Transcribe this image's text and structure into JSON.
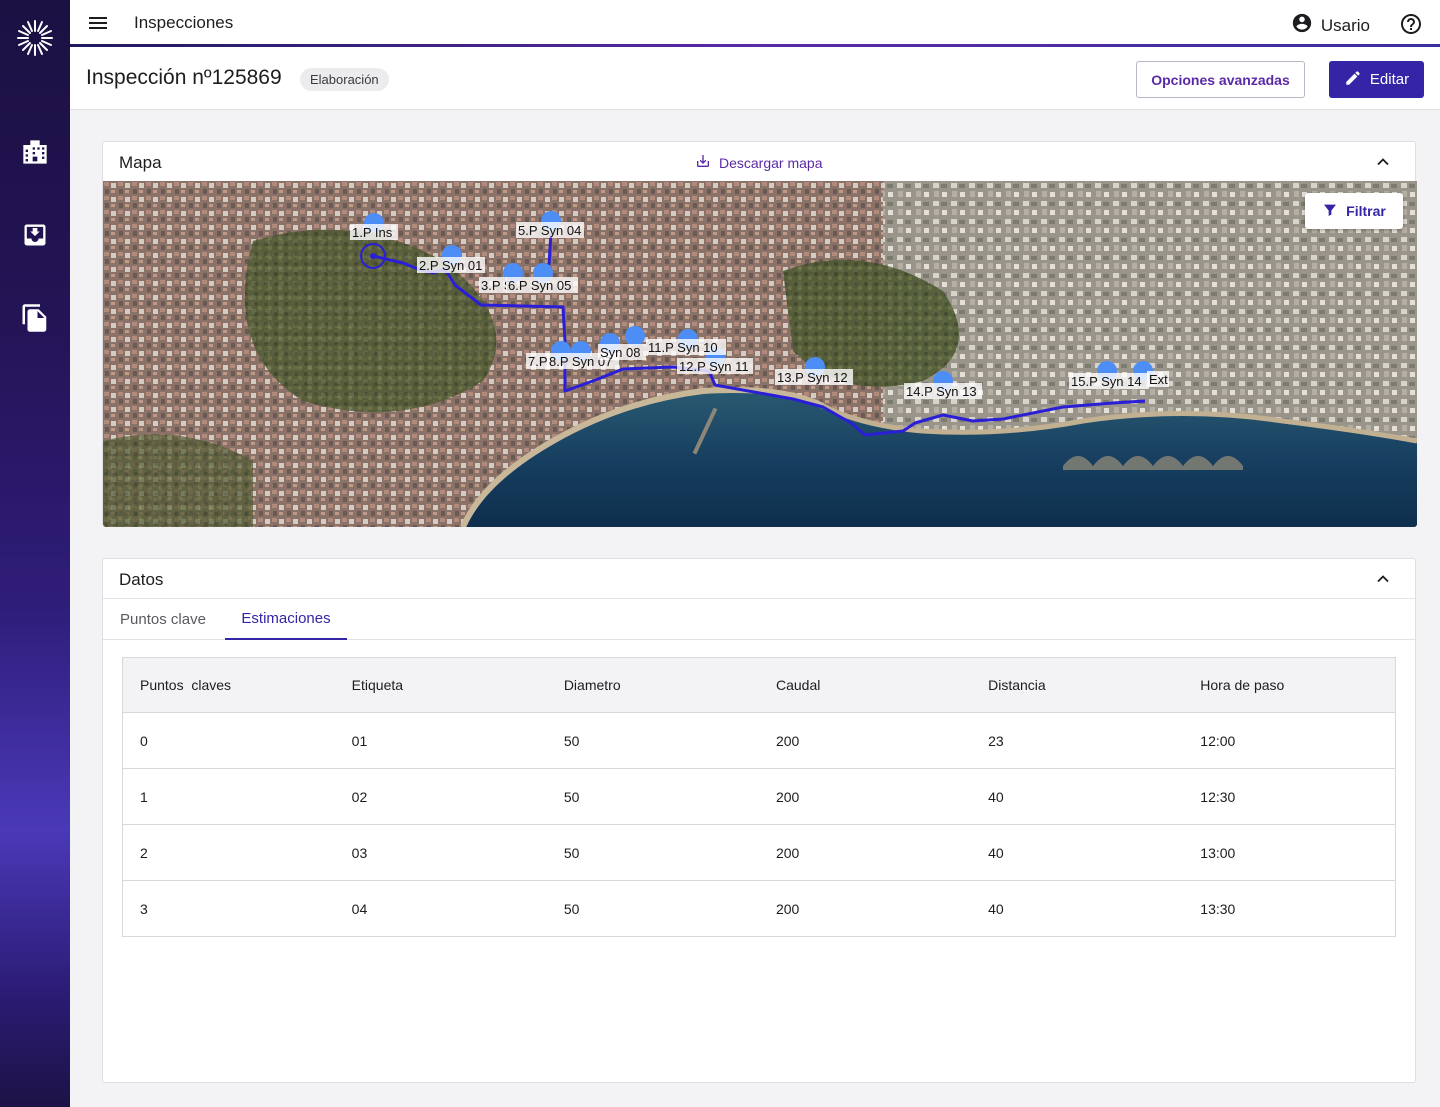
{
  "topbar": {
    "app_title": "Inspecciones",
    "user_name": "Usario"
  },
  "header": {
    "title": "Inspección nº125869",
    "status": "Elaboración",
    "advanced_options_label": "Opciones avanzadas",
    "edit_label": "Editar"
  },
  "map_card": {
    "title": "Mapa",
    "download_label": "Descargar mapa",
    "filter_label": "Filtrar",
    "markers": [
      "1.P Ins",
      "2.P Syn 01",
      "3.P S",
      "5.P Syn 04",
      "6.P Syn 05",
      "7.P",
      "8.P Syn 07",
      "Syn 08",
      "11.P Syn 10",
      "12.P Syn 11",
      "13.P Syn 12",
      "14.P Syn 13",
      "15.P Syn 14",
      "Ext"
    ]
  },
  "data_card": {
    "title": "Datos",
    "tabs": [
      "Puntos clave",
      "Estimaciones"
    ],
    "active_tab": "Estimaciones",
    "table": {
      "headers": [
        "Puntos  claves",
        "Etiqueta",
        "Diametro",
        "Caudal",
        "Distancia",
        "Hora de paso"
      ],
      "rows": [
        [
          "0",
          "01",
          "50",
          "200",
          "23",
          "12:00"
        ],
        [
          "1",
          "02",
          "50",
          "200",
          "40",
          "12:30"
        ],
        [
          "2",
          "03",
          "50",
          "200",
          "40",
          "13:00"
        ],
        [
          "3",
          "04",
          "50",
          "200",
          "40",
          "13:30"
        ]
      ]
    }
  },
  "colors": {
    "primary": "#3325a6",
    "accent": "#5b2aa6",
    "route": "#2a1fd6",
    "marker": "#4c8df6"
  },
  "icons": [
    "logo-icon",
    "menu-icon",
    "account-circle-icon",
    "help-icon",
    "building-icon",
    "inbox-icon",
    "documents-icon",
    "edit-icon",
    "download-icon",
    "chevron-up-icon",
    "filter-icon"
  ]
}
